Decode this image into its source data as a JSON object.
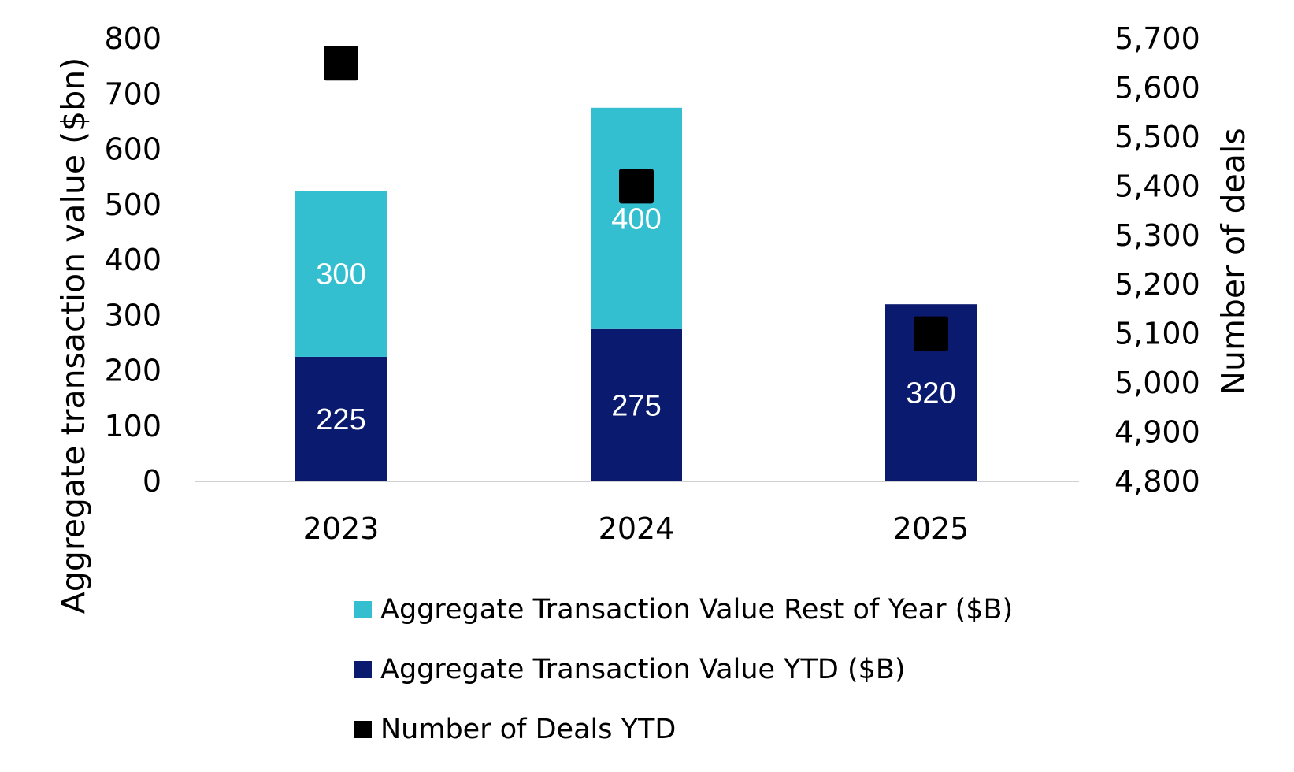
{
  "chart_data": {
    "type": "bar",
    "stacked": true,
    "categories": [
      "2023",
      "2024",
      "2025"
    ],
    "series": [
      {
        "name": "Aggregate Transaction Value YTD ($B)",
        "axis": "left",
        "color": "#0a1a6e",
        "values": [
          225,
          275,
          320
        ],
        "labels": [
          "225",
          "275",
          "320"
        ]
      },
      {
        "name": "Aggregate Transaction Value Rest of Year ($B)",
        "axis": "left",
        "color": "#33bfcf",
        "values": [
          300,
          400,
          null
        ],
        "labels": [
          "300",
          "400",
          ""
        ]
      },
      {
        "name": "Number of Deals YTD",
        "axis": "right",
        "type": "scatter",
        "marker": "square",
        "color": "#000000",
        "values": [
          5650,
          5400,
          5100
        ]
      }
    ],
    "ylabel": "Aggregate transaction value ($bn)",
    "y2label": "Number of deals",
    "ylim": [
      0,
      800
    ],
    "y2lim": [
      4800,
      5700
    ],
    "yticks": [
      "0",
      "100",
      "200",
      "300",
      "400",
      "500",
      "600",
      "700",
      "800"
    ],
    "y2ticks": [
      "4,800",
      "4,900",
      "5,000",
      "5,100",
      "5,200",
      "5,300",
      "5,400",
      "5,500",
      "5,600",
      "5,700"
    ],
    "legend_position": "bottom",
    "grid": false
  }
}
